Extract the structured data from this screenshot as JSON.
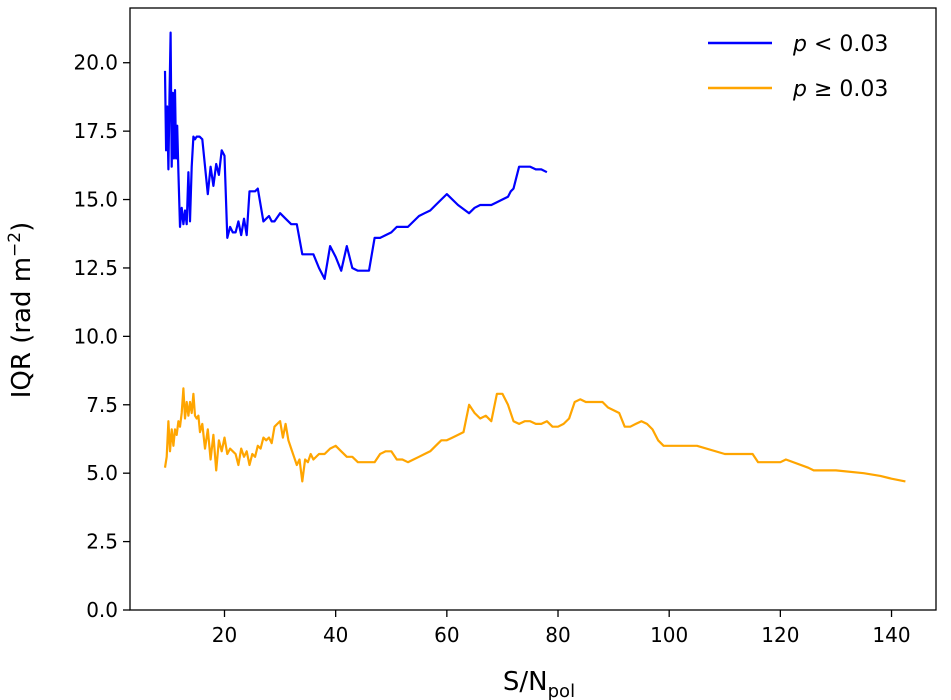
{
  "chart_data": {
    "type": "line",
    "xlabel": {
      "main": "S/N",
      "sub": "pol"
    },
    "ylabel": {
      "main": "IQR (rad m",
      "sup": "−2",
      "close": ")"
    },
    "xlim": [
      3,
      148
    ],
    "ylim": [
      0,
      22
    ],
    "xticks": [
      20,
      40,
      60,
      80,
      100,
      120,
      140
    ],
    "xtick_labels": [
      "20",
      "40",
      "60",
      "80",
      "100",
      "120",
      "140"
    ],
    "yticks": [
      0,
      2.5,
      5,
      7.5,
      10,
      12.5,
      15,
      17.5,
      20
    ],
    "ytick_labels": [
      "0.0",
      "2.5",
      "5.0",
      "7.5",
      "10.0",
      "12.5",
      "15.0",
      "17.5",
      "20.0"
    ],
    "grid": false,
    "legend_position": "top-right",
    "series": [
      {
        "name": "p < 0.03",
        "label_var": "p",
        "label_rest": " < 0.03",
        "color": "#0000ff",
        "x": [
          9.3,
          9.5,
          9.7,
          9.9,
          10.1,
          10.3,
          10.5,
          10.7,
          10.9,
          11.1,
          11.3,
          11.5,
          11.7,
          12.0,
          12.3,
          12.6,
          12.9,
          13.2,
          13.5,
          13.8,
          14.1,
          14.4,
          14.7,
          15.0,
          15.5,
          16.0,
          17.0,
          17.5,
          18.0,
          18.5,
          19.0,
          19.5,
          20.0,
          20.5,
          21.0,
          21.5,
          22.0,
          22.5,
          23.0,
          23.5,
          24.0,
          24.5,
          25.0,
          25.5,
          26.0,
          27.0,
          27.5,
          28.0,
          28.5,
          29.0,
          30.0,
          31.0,
          32.0,
          33.0,
          34.0,
          35.0,
          36.0,
          37.0,
          38.0,
          39.0,
          40.0,
          41.0,
          42.0,
          43.0,
          44.0,
          45.0,
          46.0,
          47.0,
          48.0,
          49.0,
          50.0,
          51.0,
          52.0,
          53.0,
          54.0,
          55.0,
          56.0,
          57.0,
          58.0,
          59.0,
          60.0,
          62.0,
          64.0,
          65.0,
          66.0,
          67.0,
          68.0,
          69.0,
          70.0,
          71.0,
          71.5,
          72.0,
          73.0,
          74.0,
          75.0,
          76.0,
          77.0,
          78.0
        ],
        "y": [
          19.7,
          16.8,
          18.4,
          16.1,
          18.8,
          21.1,
          16.2,
          18.9,
          16.5,
          19.0,
          16.5,
          17.7,
          16.0,
          14.0,
          14.7,
          14.1,
          14.6,
          14.1,
          16.0,
          14.2,
          16.2,
          17.3,
          17.2,
          17.3,
          17.3,
          17.2,
          15.2,
          16.2,
          15.5,
          16.3,
          15.9,
          16.8,
          16.6,
          13.6,
          14.0,
          13.8,
          13.8,
          14.2,
          13.7,
          14.3,
          13.7,
          15.3,
          15.3,
          15.3,
          15.4,
          14.2,
          14.3,
          14.4,
          14.2,
          14.2,
          14.5,
          14.3,
          14.1,
          14.1,
          13.0,
          13.0,
          13.0,
          12.5,
          12.1,
          13.3,
          12.9,
          12.4,
          13.3,
          12.5,
          12.4,
          12.4,
          12.4,
          13.6,
          13.6,
          13.7,
          13.8,
          14.0,
          14.0,
          14.0,
          14.2,
          14.4,
          14.5,
          14.6,
          14.8,
          15.0,
          15.2,
          14.8,
          14.5,
          14.7,
          14.8,
          14.8,
          14.8,
          14.9,
          15.0,
          15.1,
          15.3,
          15.4,
          16.2,
          16.2,
          16.2,
          16.1,
          16.1,
          16.0
        ]
      },
      {
        "name": "p ≥ 0.03",
        "label_var": "p",
        "label_rest": " ≥ 0.03",
        "color": "#ffa500",
        "x": [
          9.3,
          9.6,
          9.9,
          10.2,
          10.5,
          10.8,
          11.1,
          11.4,
          11.7,
          12.0,
          12.3,
          12.6,
          12.9,
          13.2,
          13.5,
          13.8,
          14.1,
          14.4,
          14.7,
          15.0,
          15.3,
          15.6,
          16.0,
          16.5,
          17.0,
          17.5,
          18.0,
          18.5,
          19.0,
          19.5,
          20.0,
          20.5,
          21.0,
          21.5,
          22.0,
          22.5,
          23.0,
          23.5,
          24.0,
          24.5,
          25.0,
          25.5,
          26.0,
          26.5,
          27.0,
          27.5,
          28.0,
          28.5,
          29.0,
          29.5,
          30.0,
          30.5,
          31.0,
          31.5,
          32.0,
          32.5,
          33.0,
          33.5,
          34.0,
          34.5,
          35.0,
          35.5,
          36.0,
          37.0,
          38.0,
          39.0,
          40.0,
          41.0,
          42.0,
          43.0,
          44.0,
          45.0,
          46.0,
          47.0,
          48.0,
          49.0,
          50.0,
          51.0,
          52.0,
          53.0,
          54.0,
          55.0,
          56.0,
          57.0,
          58.0,
          59.0,
          60.0,
          61.0,
          62.0,
          63.0,
          64.0,
          65.0,
          66.0,
          67.0,
          68.0,
          69.0,
          70.0,
          71.0,
          72.0,
          73.0,
          74.0,
          75.0,
          76.0,
          77.0,
          78.0,
          79.0,
          80.0,
          81.0,
          82.0,
          83.0,
          84.0,
          85.0,
          86.0,
          87.0,
          88.0,
          89.0,
          90.0,
          91.0,
          92.0,
          93.0,
          94.0,
          95.0,
          96.0,
          97.0,
          98.0,
          99.0,
          100.0,
          105.0,
          110.0,
          115.0,
          116.0,
          120.0,
          121.0,
          125.0,
          126.0,
          130.0,
          135.0,
          138.0,
          140.0,
          142.5
        ],
        "y": [
          5.2,
          5.6,
          6.9,
          5.8,
          6.6,
          6.0,
          6.6,
          6.4,
          6.9,
          6.7,
          7.2,
          8.1,
          7.0,
          7.6,
          7.1,
          7.6,
          7.2,
          7.9,
          7.1,
          7.0,
          7.1,
          6.5,
          6.8,
          5.9,
          6.6,
          5.5,
          6.4,
          5.1,
          6.2,
          5.8,
          6.3,
          5.7,
          5.9,
          5.8,
          5.7,
          5.3,
          5.9,
          5.6,
          5.8,
          5.3,
          5.7,
          5.6,
          6.0,
          5.9,
          6.3,
          6.2,
          6.3,
          6.1,
          6.7,
          6.8,
          6.9,
          6.3,
          6.8,
          6.2,
          5.9,
          5.6,
          5.3,
          5.5,
          4.7,
          5.5,
          5.4,
          5.7,
          5.5,
          5.7,
          5.7,
          5.9,
          6.0,
          5.8,
          5.6,
          5.6,
          5.4,
          5.4,
          5.4,
          5.4,
          5.7,
          5.8,
          5.8,
          5.5,
          5.5,
          5.4,
          5.5,
          5.6,
          5.7,
          5.8,
          6.0,
          6.2,
          6.2,
          6.3,
          6.4,
          6.5,
          7.5,
          7.2,
          7.0,
          7.1,
          6.9,
          7.9,
          7.9,
          7.5,
          6.9,
          6.8,
          6.9,
          6.9,
          6.8,
          6.8,
          6.9,
          6.7,
          6.7,
          6.8,
          7.0,
          7.6,
          7.7,
          7.6,
          7.6,
          7.6,
          7.6,
          7.4,
          7.3,
          7.2,
          6.7,
          6.7,
          6.8,
          6.9,
          6.8,
          6.6,
          6.2,
          6.0,
          6.0,
          6.0,
          5.7,
          5.7,
          5.4,
          5.4,
          5.5,
          5.2,
          5.1,
          5.1,
          5.0,
          4.9,
          4.8,
          4.7
        ]
      }
    ]
  }
}
